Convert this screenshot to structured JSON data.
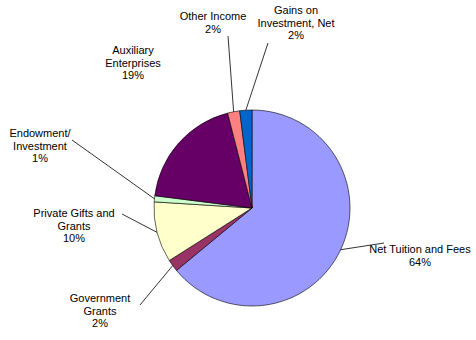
{
  "chart_data": {
    "type": "pie",
    "categories": [
      "Net Tuition and Fees",
      "Government Grants",
      "Private Gifts and Grants",
      "Endowment/Investment",
      "Auxiliary Enterprises",
      "Other Income",
      "Gains on Investment, Net"
    ],
    "values": [
      64,
      2,
      10,
      1,
      19,
      2,
      2
    ],
    "value_labels": [
      "64%",
      "2%",
      "10%",
      "1%",
      "19%",
      "2%",
      "2%"
    ],
    "colors": [
      "#9999ff",
      "#993366",
      "#ffffcc",
      "#ccffcc",
      "#660066",
      "#ff8080",
      "#0066cc"
    ],
    "data_labels": true
  }
}
